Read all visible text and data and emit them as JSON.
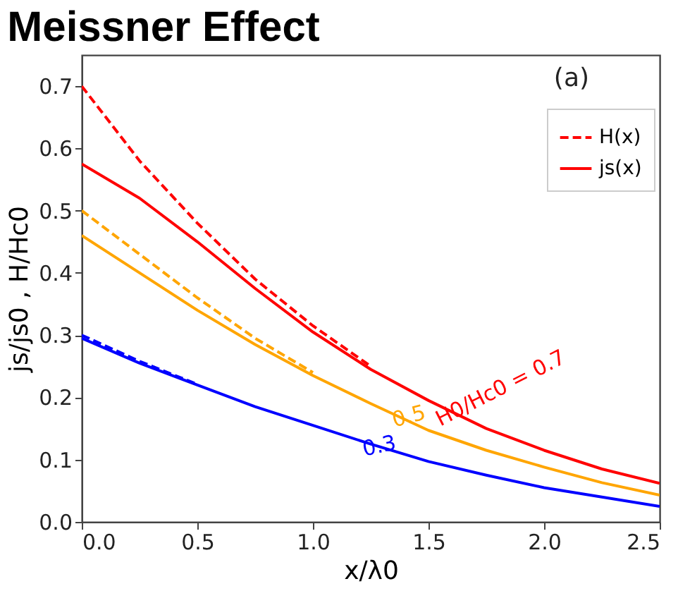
{
  "chart_data": {
    "type": "line",
    "title": "Meissner Effect",
    "xlabel": "x/λ0",
    "ylabel": "js/js0  ,  H/Hc0",
    "xlim": [
      0,
      2.5
    ],
    "ylim": [
      0,
      0.75
    ],
    "xticks": [
      {
        "value": 0,
        "label": "0.0"
      },
      0.5,
      {
        "value": 1,
        "label": "1.0"
      },
      1.5,
      {
        "value": 2,
        "label": "2.0"
      },
      2.5
    ],
    "yticks": [
      {
        "value": 0,
        "label": "0.0"
      },
      0.1,
      0.2,
      0.3,
      0.4,
      0.5,
      0.6,
      0.7
    ],
    "grid": false,
    "legend": "top right",
    "series": [
      {
        "name": "H(x)",
        "color": "#ff0000",
        "line_style": "dashed",
        "x": [
          0,
          0.25,
          0.5,
          0.75,
          1.0,
          1.25
        ],
        "values": [
          0.7,
          0.58,
          0.48,
          0.39,
          0.315,
          0.25
        ]
      },
      {
        "name": "js(x)",
        "color": "#ff0000",
        "line_style": "solid",
        "x": [
          0,
          0.25,
          0.5,
          0.75,
          1.0,
          1.25,
          1.5,
          1.75,
          2.0,
          2.25,
          2.5
        ],
        "values": [
          0.575,
          0.52,
          0.45,
          0.375,
          0.305,
          0.245,
          0.195,
          0.15,
          0.115,
          0.085,
          0.062
        ]
      },
      {
        "color": "#ffa500",
        "line_style": "dashed",
        "x": [
          0,
          0.25,
          0.5,
          0.75,
          1.0
        ],
        "values": [
          0.5,
          0.43,
          0.36,
          0.295,
          0.24
        ]
      },
      {
        "color": "#ffa500",
        "line_style": "solid",
        "x": [
          0,
          0.25,
          0.5,
          0.75,
          1.0,
          1.25,
          1.5,
          1.75,
          2.0,
          2.25,
          2.5
        ],
        "values": [
          0.46,
          0.4,
          0.34,
          0.285,
          0.235,
          0.19,
          0.147,
          0.115,
          0.088,
          0.063,
          0.043
        ]
      },
      {
        "color": "#0000ff",
        "line_style": "dashed",
        "x": [
          0,
          0.25,
          0.5
        ],
        "values": [
          0.3,
          0.258,
          0.221
        ]
      },
      {
        "color": "#0000ff",
        "line_style": "solid",
        "x": [
          0,
          0.25,
          0.5,
          0.75,
          1.0,
          1.25,
          1.5,
          1.75,
          2.0,
          2.25,
          2.5
        ],
        "values": [
          0.295,
          0.255,
          0.22,
          0.185,
          0.155,
          0.125,
          0.097,
          0.075,
          0.055,
          0.04,
          0.025
        ]
      }
    ],
    "annotations": [
      "H0/Hc0 = 0.7",
      "0.5",
      "0.3",
      "(a)"
    ]
  }
}
